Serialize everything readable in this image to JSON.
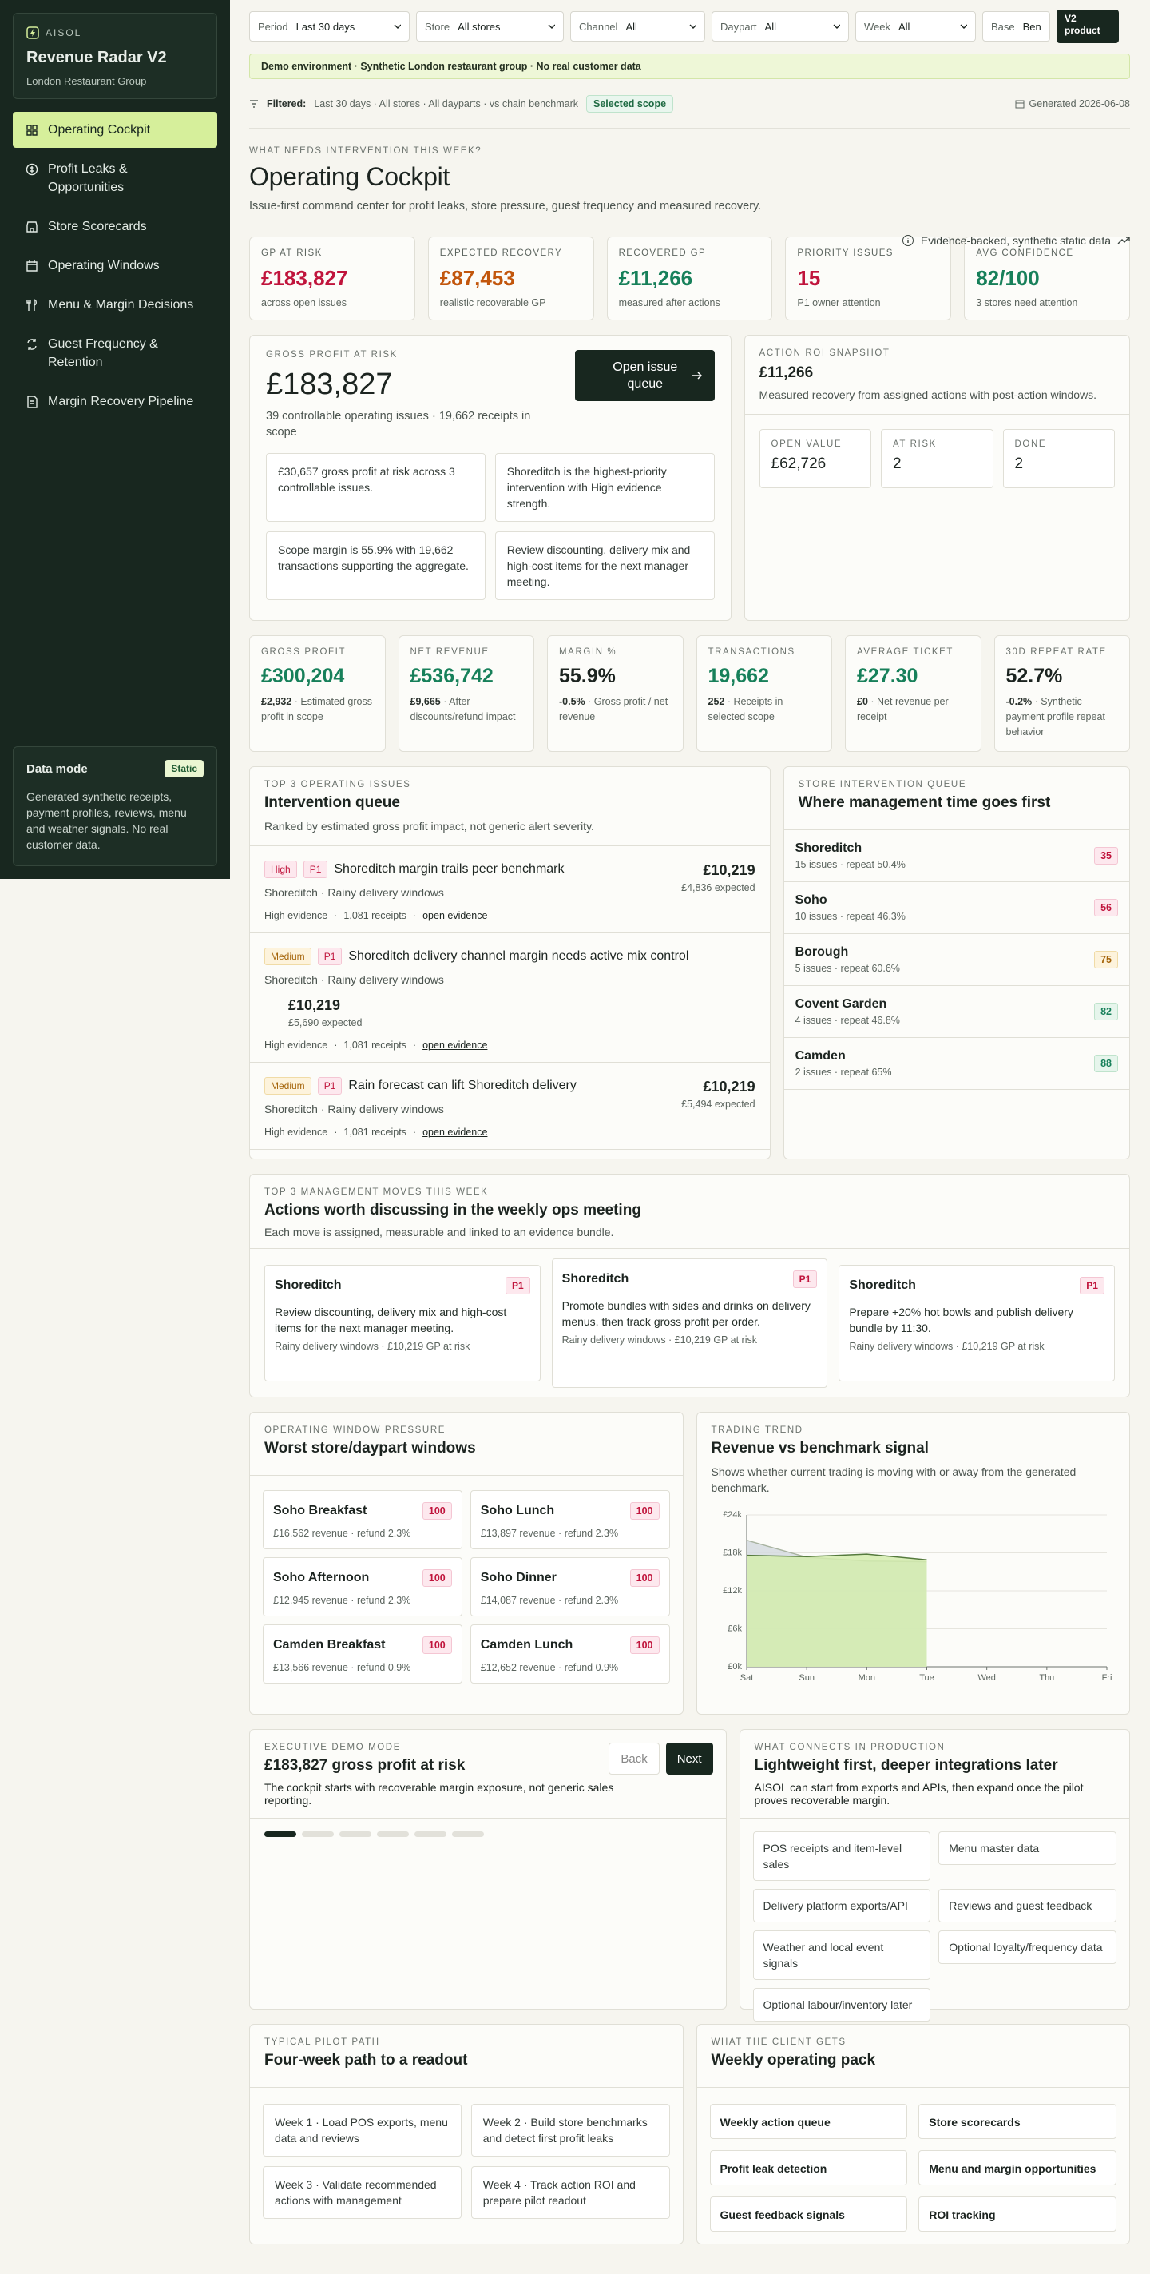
{
  "sidebar": {
    "brand": "AISOL",
    "title": "Revenue Radar V2",
    "subtitle": "London Restaurant Group",
    "nav": [
      "Operating Cockpit",
      "Profit Leaks & Opportunities",
      "Store Scorecards",
      "Operating Windows",
      "Menu & Margin Decisions",
      "Guest Frequency & Retention",
      "Margin Recovery Pipeline"
    ],
    "data_mode": {
      "title": "Data mode",
      "badge": "Static",
      "text": "Generated synthetic receipts, payment profiles, reviews, menu and weather signals. No real customer data."
    }
  },
  "filters": [
    {
      "label": "Period",
      "value": "Last 30 days"
    },
    {
      "label": "Store",
      "value": "All stores"
    },
    {
      "label": "Channel",
      "value": "All"
    },
    {
      "label": "Daypart",
      "value": "All"
    },
    {
      "label": "Week",
      "value": "All"
    },
    {
      "label": "Base",
      "value": "Benc"
    }
  ],
  "v2_button": "V2 product",
  "demo_banner": "Demo environment · Synthetic London restaurant group · No real customer data",
  "filtered": {
    "label": "Filtered:",
    "text": "Last 30 days · All stores · All dayparts · vs chain benchmark",
    "badge": "Selected scope",
    "generated": "Generated 2026-06-08"
  },
  "header": {
    "eyebrow": "WHAT NEEDS INTERVENTION THIS WEEK?",
    "title": "Operating Cockpit",
    "subtitle": "Issue-first command center for profit leaks, store pressure, guest frequency and measured recovery.",
    "note": "Evidence-backed, synthetic static data"
  },
  "kpis": [
    {
      "label": "GP AT RISK",
      "value": "£183,827",
      "sub": "across open issues",
      "tone": "red"
    },
    {
      "label": "EXPECTED RECOVERY",
      "value": "£87,453",
      "sub": "realistic recoverable GP",
      "tone": "orange"
    },
    {
      "label": "RECOVERED GP",
      "value": "£11,266",
      "sub": "measured after actions",
      "tone": "green"
    },
    {
      "label": "PRIORITY ISSUES",
      "value": "15",
      "sub": "P1 owner attention",
      "tone": "red"
    },
    {
      "label": "AVG CONFIDENCE",
      "value": "82/100",
      "sub": "3 stores need attention",
      "tone": "green"
    }
  ],
  "gp_panel": {
    "eyebrow": "GROSS PROFIT AT RISK",
    "value": "£183,827",
    "text": "39 controllable operating issues · 19,662 receipts in scope",
    "button": "Open issue queue",
    "cards": [
      "£30,657 gross profit at risk across 3 controllable issues.",
      "Shoreditch is the highest-priority intervention with High evidence strength.",
      "Scope margin is 55.9% with 19,662 transactions supporting the aggregate.",
      "Review discounting, delivery mix and high-cost items for the next manager meeting."
    ]
  },
  "roi": {
    "eyebrow": "ACTION ROI SNAPSHOT",
    "value": "£11,266",
    "text": "Measured recovery from assigned actions with post-action windows.",
    "stats": [
      {
        "label": "OPEN VALUE",
        "value": "£62,726"
      },
      {
        "label": "AT RISK",
        "value": "2"
      },
      {
        "label": "DONE",
        "value": "2"
      }
    ]
  },
  "metrics": [
    {
      "label": "GROSS PROFIT",
      "value": "£300,204",
      "tone": "green",
      "delta": "£2,932",
      "note": "· Estimated gross profit in scope"
    },
    {
      "label": "NET REVENUE",
      "value": "£536,742",
      "tone": "green",
      "delta": "£9,665",
      "note": "· After discounts/refund impact"
    },
    {
      "label": "MARGIN %",
      "value": "55.9%",
      "tone": "dark",
      "delta": "-0.5%",
      "note": "· Gross profit / net revenue"
    },
    {
      "label": "TRANSACTIONS",
      "value": "19,662",
      "tone": "green",
      "delta": "252",
      "note": "· Receipts in selected scope"
    },
    {
      "label": "AVERAGE TICKET",
      "value": "£27.30",
      "tone": "green",
      "delta": "£0",
      "note": "· Net revenue per receipt"
    },
    {
      "label": "30D REPEAT RATE",
      "value": "52.7%",
      "tone": "dark",
      "delta": "-0.2%",
      "note": "· Synthetic payment profile repeat behavior"
    }
  ],
  "queue": {
    "eyebrow": "TOP 3 OPERATING ISSUES",
    "title": "Intervention queue",
    "subtitle": "Ranked by estimated gross profit impact, not generic alert severity.",
    "items": [
      {
        "severity": "High",
        "priority": "P1",
        "title": "Shoreditch margin trails peer benchmark",
        "meta": "Shoreditch · Rainy delivery windows",
        "amount": "£10,219",
        "expected": "£4,836 expected",
        "evidence": "High evidence",
        "receipts": "1,081 receipts",
        "link": "open evidence"
      },
      {
        "severity": "Medium",
        "priority": "P1",
        "title": "Shoreditch delivery channel margin needs active mix control",
        "meta": "Shoreditch · Rainy delivery windows",
        "amount": "£10,219",
        "expected": "£5,690 expected",
        "evidence": "High evidence",
        "receipts": "1,081 receipts",
        "link": "open evidence"
      },
      {
        "severity": "Medium",
        "priority": "P1",
        "title": "Rain forecast can lift Shoreditch delivery",
        "meta": "Shoreditch · Rainy delivery windows",
        "amount": "£10,219",
        "expected": "£5,494 expected",
        "evidence": "High evidence",
        "receipts": "1,081 receipts",
        "link": "open evidence"
      }
    ]
  },
  "stores": {
    "eyebrow": "STORE INTERVENTION QUEUE",
    "title": "Where management time goes first",
    "items": [
      {
        "name": "Shoreditch",
        "meta": "15 issues · repeat 50.4%",
        "score": 35,
        "tone": "red"
      },
      {
        "name": "Soho",
        "meta": "10 issues · repeat 46.3%",
        "score": 56,
        "tone": "red"
      },
      {
        "name": "Borough",
        "meta": "5 issues · repeat 60.6%",
        "score": 75,
        "tone": "amber"
      },
      {
        "name": "Covent Garden",
        "meta": "4 issues · repeat 46.8%",
        "score": 82,
        "tone": "green"
      },
      {
        "name": "Camden",
        "meta": "2 issues · repeat 65%",
        "score": 88,
        "tone": "green"
      }
    ]
  },
  "actions": {
    "eyebrow": "TOP 3 MANAGEMENT MOVES THIS WEEK",
    "title": "Actions worth discussing in the weekly ops meeting",
    "subtitle": "Each move is assigned, measurable and linked to an evidence bundle.",
    "items": [
      {
        "store": "Shoreditch",
        "priority": "P1",
        "text": "Review discounting, delivery mix and high-cost items for the next manager meeting.",
        "meta": "Rainy delivery windows · £10,219 GP at risk"
      },
      {
        "store": "Shoreditch",
        "priority": "P1",
        "text": "Promote bundles with sides and drinks on delivery menus, then track gross profit per order.",
        "meta": "Rainy delivery windows · £10,219 GP at risk"
      },
      {
        "store": "Shoreditch",
        "priority": "P1",
        "text": "Prepare +20% hot bowls and publish delivery bundle by 11:30.",
        "meta": "Rainy delivery windows · £10,219 GP at risk"
      }
    ]
  },
  "windows": {
    "eyebrow": "OPERATING WINDOW PRESSURE",
    "title": "Worst store/daypart windows",
    "items": [
      {
        "name": "Soho Breakfast",
        "score": 100,
        "meta": "£16,562 revenue · refund 2.3%"
      },
      {
        "name": "Soho Lunch",
        "score": 100,
        "meta": "£13,897 revenue · refund 2.3%"
      },
      {
        "name": "Soho Afternoon",
        "score": 100,
        "meta": "£12,945 revenue · refund 2.3%"
      },
      {
        "name": "Soho Dinner",
        "score": 100,
        "meta": "£14,087 revenue · refund 2.3%"
      },
      {
        "name": "Camden Breakfast",
        "score": 100,
        "meta": "£13,566 revenue · refund 0.9%"
      },
      {
        "name": "Camden Lunch",
        "score": 100,
        "meta": "£12,652 revenue · refund 0.9%"
      }
    ]
  },
  "trend": {
    "eyebrow": "TRADING TREND",
    "title": "Revenue vs benchmark signal",
    "subtitle": "Shows whether current trading is moving with or away from the generated benchmark.",
    "chart_data": {
      "type": "area",
      "categories": [
        "Sat",
        "Sun",
        "Mon",
        "Tue",
        "Wed",
        "Thu",
        "Fri"
      ],
      "series": [
        {
          "color": "#d5dbe0",
          "values": [
            20000,
            17300,
            16700,
            16600,
            null,
            null,
            null
          ]
        },
        {
          "color": "#d3ecae",
          "values": [
            17600,
            17400,
            17800,
            16900,
            null,
            null,
            null
          ]
        }
      ],
      "ylim": [
        0,
        24000
      ],
      "yticks": [
        {
          "value": 0,
          "label": "£0k"
        },
        {
          "value": 6000,
          "label": "£6k"
        },
        {
          "value": 12000,
          "label": "£12k"
        },
        {
          "value": 18000,
          "label": "£18k"
        },
        {
          "value": 24000,
          "label": "£24k"
        }
      ],
      "grid": true
    }
  },
  "demo": {
    "eyebrow": "EXECUTIVE DEMO MODE",
    "title": "£183,827 gross profit at risk",
    "text": "The cockpit starts with recoverable margin exposure, not generic sales reporting.",
    "back": "Back",
    "next": "Next"
  },
  "production": {
    "eyebrow": "WHAT CONNECTS IN PRODUCTION",
    "title": "Lightweight first, deeper integrations later",
    "text": "AISOL can start from exports and APIs, then expand once the pilot proves recoverable margin.",
    "items": [
      "POS receipts and item-level sales",
      "Menu master data",
      "Delivery platform exports/API",
      "Reviews and guest feedback",
      "Weather and local event signals",
      "Optional loyalty/frequency data",
      "Optional labour/inventory later"
    ]
  },
  "pilot": {
    "eyebrow": "TYPICAL PILOT PATH",
    "title": "Four-week path to a readout",
    "steps": [
      "Week 1 · Load POS exports, menu data and reviews",
      "Week 2 · Build store benchmarks and detect first profit leaks",
      "Week 3 · Validate recommended actions with management",
      "Week 4 · Track action ROI and prepare pilot readout"
    ]
  },
  "client": {
    "eyebrow": "WHAT THE CLIENT GETS",
    "title": "Weekly operating pack",
    "items": [
      "Weekly action queue",
      "Store scorecards",
      "Profit leak detection",
      "Menu and margin opportunities",
      "Guest feedback signals",
      "ROI tracking"
    ]
  }
}
